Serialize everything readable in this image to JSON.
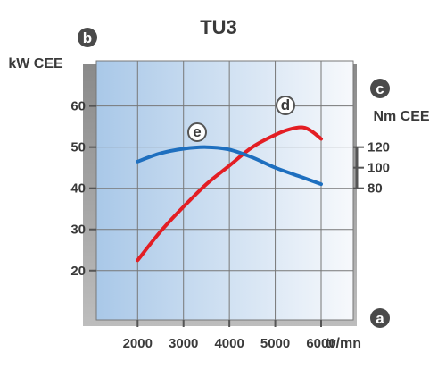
{
  "chart_data": {
    "type": "line",
    "title": "TU3",
    "xlabel": "tr/mn",
    "ylabel": "kW CEE",
    "y2label": "Nm CEE",
    "xlim": [
      1100,
      6700
    ],
    "ylim": [
      8,
      71
    ],
    "y2lim": [
      80,
      120
    ],
    "x_ticks": [
      2000,
      3000,
      4000,
      5000,
      6000
    ],
    "y_ticks": [
      20,
      30,
      40,
      50,
      60
    ],
    "y2_ticks": [
      80,
      100,
      120
    ],
    "grid": true,
    "axis_markers": {
      "x": "a",
      "y": "b",
      "y2": "c"
    },
    "series": [
      {
        "marker": "d",
        "axis": "y",
        "color": "#e31e24",
        "points": [
          [
            2000,
            22.5
          ],
          [
            2500,
            29.5
          ],
          [
            3000,
            35.5
          ],
          [
            3500,
            41
          ],
          [
            4000,
            45.5
          ],
          [
            4500,
            50
          ],
          [
            5000,
            53
          ],
          [
            5300,
            54.3
          ],
          [
            5600,
            54.8
          ],
          [
            5800,
            53.8
          ],
          [
            6000,
            52
          ]
        ]
      },
      {
        "marker": "e",
        "axis": "y",
        "color": "#1e6fbf",
        "points": [
          [
            2000,
            46.5
          ],
          [
            2500,
            48.5
          ],
          [
            3000,
            49.6
          ],
          [
            3500,
            50
          ],
          [
            4000,
            49.4
          ],
          [
            4500,
            47.5
          ],
          [
            5000,
            45
          ],
          [
            5500,
            43
          ],
          [
            6000,
            41
          ]
        ]
      }
    ],
    "colors": {
      "grid": "#777777",
      "axis": "#555555",
      "text": "#3a3a3a",
      "panel_left": "#a9c8e8",
      "panel_right": "#f7f9fc"
    }
  }
}
